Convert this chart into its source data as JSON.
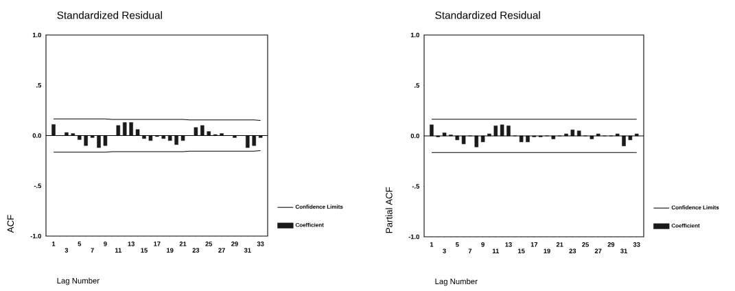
{
  "chart_data": [
    {
      "type": "bar",
      "title": "Standardized Residual",
      "xlabel": "Lag Number",
      "ylabel": "ACF",
      "categories": [
        "1",
        null,
        "3",
        null,
        "5",
        null,
        "7",
        null,
        "9",
        null,
        "11",
        null,
        "13",
        null,
        "15",
        null,
        "17",
        null,
        "19",
        null,
        "21",
        null,
        "23",
        null,
        "25",
        null,
        "27",
        null,
        "29",
        null,
        "31",
        null,
        "33"
      ],
      "series": [
        {
          "name": "Confidence Limits",
          "type": "line",
          "color": "#000000",
          "values": [
            0.165,
            0.165,
            0.165,
            0.165,
            0.165,
            0.165,
            0.165,
            0.165,
            0.165,
            0.16,
            0.16,
            0.16,
            0.16,
            0.16,
            0.16,
            0.16,
            0.16,
            0.16,
            0.16,
            0.16,
            0.16,
            0.155,
            0.155,
            0.155,
            0.155,
            0.155,
            0.155,
            0.155,
            0.155,
            0.155,
            0.155,
            0.155,
            0.15
          ]
        },
        {
          "type": "line",
          "color": "#000000",
          "values": [
            -0.165,
            -0.165,
            -0.165,
            -0.165,
            -0.165,
            -0.165,
            -0.165,
            -0.165,
            -0.165,
            -0.16,
            -0.16,
            -0.16,
            -0.16,
            -0.16,
            -0.16,
            -0.16,
            -0.16,
            -0.16,
            -0.16,
            -0.16,
            -0.16,
            -0.155,
            -0.155,
            -0.155,
            -0.155,
            -0.155,
            -0.155,
            -0.155,
            -0.155,
            -0.155,
            -0.155,
            -0.155,
            -0.15
          ]
        },
        {
          "name": "Coefficient",
          "color": "#1a1a1a",
          "values": [
            0.11,
            0.0,
            0.03,
            0.02,
            -0.04,
            -0.1,
            -0.02,
            -0.12,
            -0.1,
            0.0,
            0.1,
            0.13,
            0.13,
            0.06,
            -0.03,
            -0.05,
            -0.01,
            -0.03,
            -0.05,
            -0.09,
            -0.05,
            0.0,
            0.08,
            0.1,
            0.04,
            0.01,
            0.02,
            0.0,
            -0.02,
            0.0,
            -0.12,
            -0.1,
            -0.02
          ]
        }
      ],
      "ylim": [
        -1,
        1
      ],
      "yticks": [
        {
          "value": -1,
          "label": "-1.0"
        },
        {
          "value": -0.5,
          "label": "-.5"
        },
        {
          "value": 0,
          "label": "0.0"
        },
        {
          "value": 0.5,
          "label": ".5"
        },
        {
          "value": 1,
          "label": "1.0"
        }
      ],
      "ref_lines": [
        {
          "axis": "y",
          "value": 0
        }
      ],
      "legend": "right"
    },
    {
      "type": "bar",
      "title": "Standardized Residual",
      "xlabel": "Lag Number",
      "ylabel": "Partial ACF",
      "categories": [
        "1",
        null,
        "3",
        null,
        "5",
        null,
        "7",
        null,
        "9",
        null,
        "11",
        null,
        "13",
        null,
        "15",
        null,
        "17",
        null,
        "19",
        null,
        "21",
        null,
        "23",
        null,
        "25",
        null,
        "27",
        null,
        "29",
        null,
        "31",
        null,
        "33"
      ],
      "series": [
        {
          "name": "Confidence Limits",
          "type": "line",
          "color": "#000000",
          "values": [
            0.165,
            0.165,
            0.165,
            0.165,
            0.165,
            0.165,
            0.165,
            0.165,
            0.165,
            0.165,
            0.165,
            0.165,
            0.165,
            0.165,
            0.165,
            0.165,
            0.165,
            0.165,
            0.165,
            0.165,
            0.165,
            0.165,
            0.165,
            0.165,
            0.165,
            0.165,
            0.165,
            0.165,
            0.165,
            0.165,
            0.165,
            0.165,
            0.165
          ]
        },
        {
          "type": "line",
          "color": "#000000",
          "values": [
            -0.165,
            -0.165,
            -0.165,
            -0.165,
            -0.165,
            -0.165,
            -0.165,
            -0.165,
            -0.165,
            -0.165,
            -0.165,
            -0.165,
            -0.165,
            -0.165,
            -0.165,
            -0.165,
            -0.165,
            -0.165,
            -0.165,
            -0.165,
            -0.165,
            -0.165,
            -0.165,
            -0.165,
            -0.165,
            -0.165,
            -0.165,
            -0.165,
            -0.165,
            -0.165,
            -0.165,
            -0.165,
            -0.165
          ]
        },
        {
          "name": "Coefficient",
          "color": "#1a1a1a",
          "values": [
            0.11,
            -0.01,
            0.03,
            0.01,
            -0.04,
            -0.08,
            0.0,
            -0.11,
            -0.06,
            0.02,
            0.1,
            0.11,
            0.1,
            0.0,
            -0.06,
            -0.06,
            -0.01,
            -0.01,
            0.0,
            -0.03,
            0.0,
            0.02,
            0.06,
            0.05,
            0.0,
            -0.03,
            0.02,
            0.0,
            0.0,
            0.02,
            -0.1,
            -0.04,
            0.02
          ]
        }
      ],
      "ylim": [
        -1,
        1
      ],
      "yticks": [
        {
          "value": -1,
          "label": "-1.0"
        },
        {
          "value": -0.5,
          "label": "-.5"
        },
        {
          "value": 0,
          "label": "0.0"
        },
        {
          "value": 0.5,
          "label": ".5"
        },
        {
          "value": 1,
          "label": "1.0"
        }
      ],
      "ref_lines": [
        {
          "axis": "y",
          "value": 0
        }
      ],
      "legend": "right"
    }
  ]
}
